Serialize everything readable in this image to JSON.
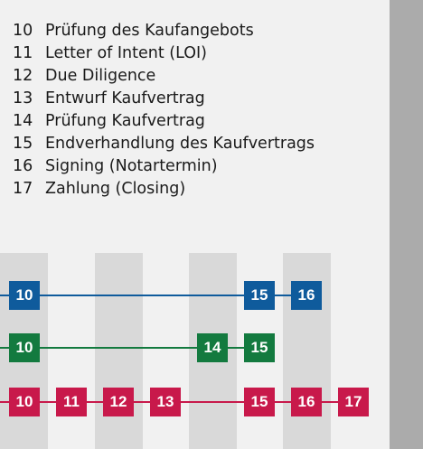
{
  "legend": [
    {
      "num": "10",
      "text": "Prüfung des Kaufangebots"
    },
    {
      "num": "11",
      "text": "Letter of Intent (LOI)"
    },
    {
      "num": "12",
      "text": "Due Diligence"
    },
    {
      "num": "13",
      "text": "Entwurf Kaufvertrag"
    },
    {
      "num": "14",
      "text": "Prüfung Kaufvertrag"
    },
    {
      "num": "15",
      "text": "Endverhandlung des Kaufvertrags"
    },
    {
      "num": "16",
      "text": "Signing (Notartermin)"
    },
    {
      "num": "17",
      "text": "Zahlung (Closing)"
    }
  ],
  "colors": {
    "blue": "#0f5b9c",
    "green": "#137a3f",
    "red": "#c8194b",
    "stripe": "#d9d9d9",
    "background": "#f1f1f1",
    "right_bar": "#ababab"
  },
  "tracks": [
    {
      "name": "blue",
      "color": "#0f5b9c",
      "steps": [
        "10",
        "15",
        "16"
      ]
    },
    {
      "name": "green",
      "color": "#137a3f",
      "steps": [
        "10",
        "14",
        "15"
      ]
    },
    {
      "name": "red",
      "color": "#c8194b",
      "steps": [
        "10",
        "11",
        "12",
        "13",
        "15",
        "16",
        "17"
      ]
    }
  ]
}
